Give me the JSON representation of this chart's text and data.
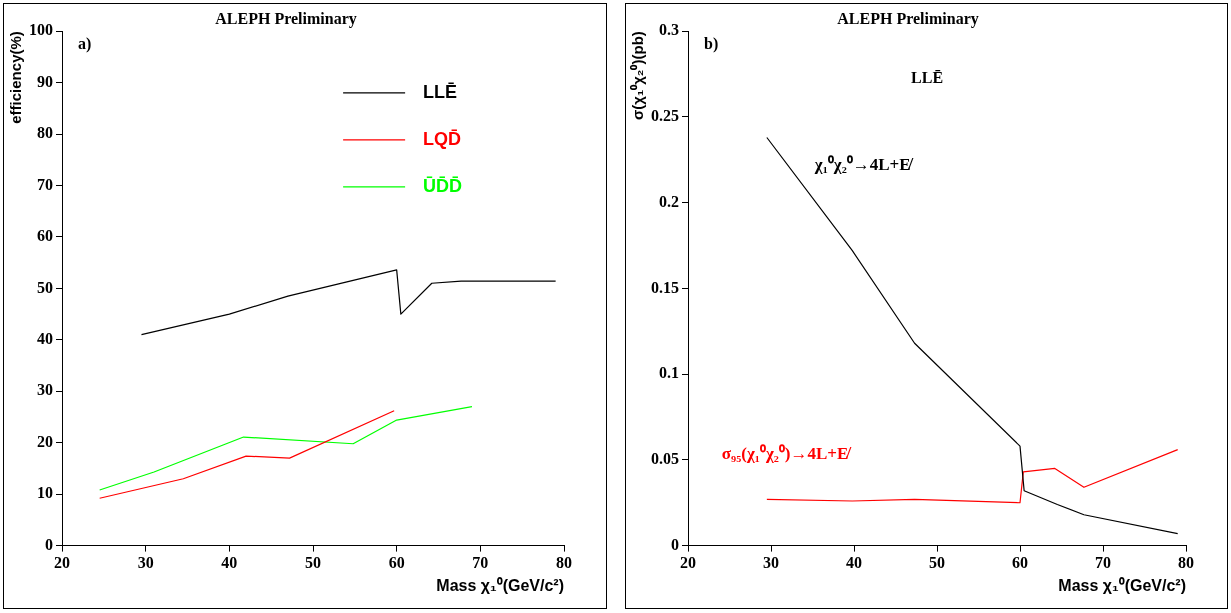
{
  "chart_data": [
    {
      "type": "line",
      "title": "ALEPH Preliminary",
      "xlabel": "Mass χ₁⁰(GeV/c²)",
      "ylabel": "efficiency(%)",
      "annotations": [
        "a)"
      ],
      "xlim": [
        20,
        80
      ],
      "xticks": [
        20,
        30,
        40,
        50,
        60,
        70,
        80
      ],
      "ylim": [
        0,
        100
      ],
      "yticks": [
        0,
        10,
        20,
        30,
        40,
        50,
        60,
        70,
        80,
        90,
        100
      ],
      "grid": false,
      "legend": "top right",
      "marker": "none",
      "line_style": "solid",
      "series": [
        {
          "name": "LLĒ",
          "color": "#000000",
          "x": [
            29.5,
            40,
            47,
            60,
            60.5,
            64.2,
            67.7,
            79
          ],
          "values": [
            41,
            45,
            48.5,
            53.6,
            45,
            51,
            51.4,
            51.4
          ]
        },
        {
          "name": "LQD̄",
          "color": "#ff0000",
          "x": [
            24.5,
            34.5,
            42,
            47.2,
            59.7
          ],
          "values": [
            9.2,
            13,
            17.4,
            17,
            26.2
          ]
        },
        {
          "name": "ŪD̄D̄",
          "color": "#00ff00",
          "x": [
            24.5,
            31,
            41.7,
            54.8,
            60,
            69
          ],
          "values": [
            10.8,
            14.3,
            21.1,
            19.8,
            24.4,
            27
          ]
        }
      ]
    },
    {
      "type": "line",
      "title": "ALEPH Preliminary",
      "xlabel": "Mass χ₁⁰(GeV/c²)",
      "ylabel": "σ(χ₁⁰χ₂⁰)(pb)",
      "annotations": [
        "b)",
        "LLĒ"
      ],
      "xlim": [
        20,
        80
      ],
      "xticks": [
        20,
        30,
        40,
        50,
        60,
        70,
        80
      ],
      "ylim": [
        0,
        0.3
      ],
      "yticks": [
        0,
        0.05,
        0.1,
        0.15,
        0.2,
        0.25,
        0.3
      ],
      "grid": false,
      "marker": "none",
      "line_style": "solid",
      "series": [
        {
          "name": "χ₁⁰χ₂⁰→4L+E̸",
          "color": "#000000",
          "x": [
            29.5,
            39.8,
            47.3,
            60,
            60.5,
            64.5,
            67.7,
            79
          ],
          "values": [
            0.238,
            0.172,
            0.118,
            0.058,
            0.032,
            0.024,
            0.018,
            0.007
          ]
        },
        {
          "name": "σ₉₅(χ₁⁰χ₂⁰)→4L+E̸",
          "color": "#ff0000",
          "x": [
            29.5,
            39.8,
            47.3,
            60,
            60.4,
            64.2,
            67.7,
            79
          ],
          "values": [
            0.027,
            0.026,
            0.027,
            0.025,
            0.043,
            0.045,
            0.034,
            0.056
          ]
        }
      ]
    }
  ]
}
